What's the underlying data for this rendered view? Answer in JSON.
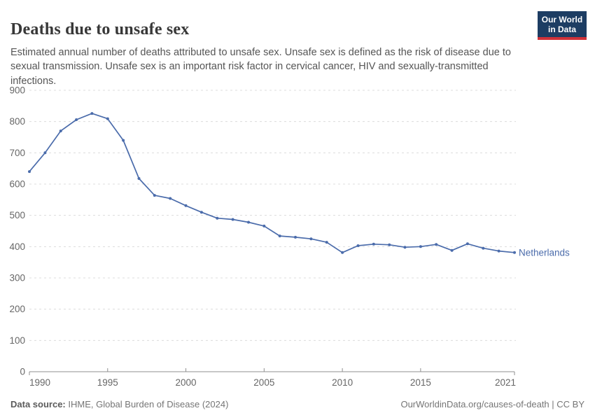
{
  "header": {
    "title": "Deaths due to unsafe sex",
    "subtitle": "Estimated annual number of deaths attributed to unsafe sex. Unsafe sex is defined as the risk of disease due to sexual transmission. Unsafe sex is an important risk factor in cervical cancer, HIV and sexually-transmitted infections.",
    "logo": {
      "line1": "Our World",
      "line2": "in Data",
      "bg_color": "#1d3d63",
      "accent_color": "#d13239"
    }
  },
  "chart_data": {
    "type": "line",
    "title": "Deaths due to unsafe sex",
    "xlabel": "",
    "ylabel": "",
    "ylim": [
      0,
      900
    ],
    "ytick_interval": 100,
    "yticks": [
      0,
      100,
      200,
      300,
      400,
      500,
      600,
      700,
      800,
      900
    ],
    "xticks": [
      1990,
      1995,
      2000,
      2005,
      2010,
      2015,
      2021
    ],
    "xrange": [
      1990,
      2021
    ],
    "grid": "horizontal-dashed",
    "legend_position": "end-of-line-label",
    "colors": {
      "grid": "#dcdcdc",
      "axis": "#8f8f8f",
      "tick_label": "#666666",
      "series": "#4b6cab"
    },
    "series": [
      {
        "name": "Netherlands",
        "color": "#4b6cab",
        "x": [
          1990,
          1991,
          1992,
          1993,
          1994,
          1995,
          1996,
          1997,
          1998,
          1999,
          2000,
          2001,
          2002,
          2003,
          2004,
          2005,
          2006,
          2007,
          2008,
          2009,
          2010,
          2011,
          2012,
          2013,
          2014,
          2015,
          2016,
          2017,
          2018,
          2019,
          2020,
          2021
        ],
        "values": [
          640,
          700,
          770,
          806,
          826,
          809,
          740,
          618,
          564,
          554,
          531,
          510,
          491,
          487,
          478,
          466,
          434,
          430,
          425,
          414,
          381,
          403,
          408,
          406,
          398,
          400,
          407,
          388,
          409,
          395,
          386,
          381
        ]
      }
    ]
  },
  "footer": {
    "source_label": "Data source:",
    "source_text": " IHME, Global Burden of Disease (2024)",
    "credit": "OurWorldinData.org/causes-of-death | CC BY"
  }
}
